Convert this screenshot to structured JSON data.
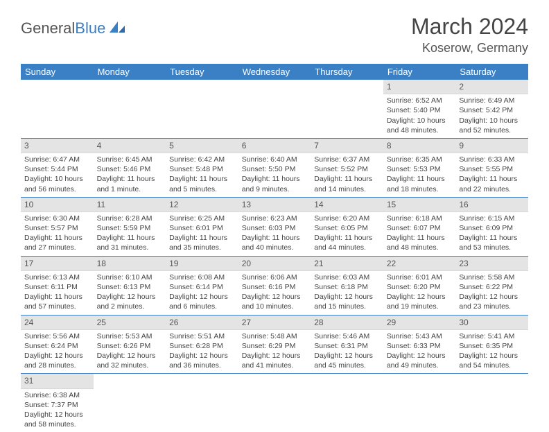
{
  "logo": {
    "general": "General",
    "blue": "Blue"
  },
  "title": "March 2024",
  "location": "Koserow, Germany",
  "colors": {
    "header_bg": "#3b7fc4",
    "daynum_bg": "#e4e4e4",
    "border": "#3b7fc4"
  },
  "weekdays": [
    "Sunday",
    "Monday",
    "Tuesday",
    "Wednesday",
    "Thursday",
    "Friday",
    "Saturday"
  ],
  "weeks": [
    [
      null,
      null,
      null,
      null,
      null,
      {
        "n": "1",
        "sr": "6:52 AM",
        "ss": "5:40 PM",
        "dl": "10 hours and 48 minutes."
      },
      {
        "n": "2",
        "sr": "6:49 AM",
        "ss": "5:42 PM",
        "dl": "10 hours and 52 minutes."
      }
    ],
    [
      {
        "n": "3",
        "sr": "6:47 AM",
        "ss": "5:44 PM",
        "dl": "10 hours and 56 minutes."
      },
      {
        "n": "4",
        "sr": "6:45 AM",
        "ss": "5:46 PM",
        "dl": "11 hours and 1 minute."
      },
      {
        "n": "5",
        "sr": "6:42 AM",
        "ss": "5:48 PM",
        "dl": "11 hours and 5 minutes."
      },
      {
        "n": "6",
        "sr": "6:40 AM",
        "ss": "5:50 PM",
        "dl": "11 hours and 9 minutes."
      },
      {
        "n": "7",
        "sr": "6:37 AM",
        "ss": "5:52 PM",
        "dl": "11 hours and 14 minutes."
      },
      {
        "n": "8",
        "sr": "6:35 AM",
        "ss": "5:53 PM",
        "dl": "11 hours and 18 minutes."
      },
      {
        "n": "9",
        "sr": "6:33 AM",
        "ss": "5:55 PM",
        "dl": "11 hours and 22 minutes."
      }
    ],
    [
      {
        "n": "10",
        "sr": "6:30 AM",
        "ss": "5:57 PM",
        "dl": "11 hours and 27 minutes."
      },
      {
        "n": "11",
        "sr": "6:28 AM",
        "ss": "5:59 PM",
        "dl": "11 hours and 31 minutes."
      },
      {
        "n": "12",
        "sr": "6:25 AM",
        "ss": "6:01 PM",
        "dl": "11 hours and 35 minutes."
      },
      {
        "n": "13",
        "sr": "6:23 AM",
        "ss": "6:03 PM",
        "dl": "11 hours and 40 minutes."
      },
      {
        "n": "14",
        "sr": "6:20 AM",
        "ss": "6:05 PM",
        "dl": "11 hours and 44 minutes."
      },
      {
        "n": "15",
        "sr": "6:18 AM",
        "ss": "6:07 PM",
        "dl": "11 hours and 48 minutes."
      },
      {
        "n": "16",
        "sr": "6:15 AM",
        "ss": "6:09 PM",
        "dl": "11 hours and 53 minutes."
      }
    ],
    [
      {
        "n": "17",
        "sr": "6:13 AM",
        "ss": "6:11 PM",
        "dl": "11 hours and 57 minutes."
      },
      {
        "n": "18",
        "sr": "6:10 AM",
        "ss": "6:13 PM",
        "dl": "12 hours and 2 minutes."
      },
      {
        "n": "19",
        "sr": "6:08 AM",
        "ss": "6:14 PM",
        "dl": "12 hours and 6 minutes."
      },
      {
        "n": "20",
        "sr": "6:06 AM",
        "ss": "6:16 PM",
        "dl": "12 hours and 10 minutes."
      },
      {
        "n": "21",
        "sr": "6:03 AM",
        "ss": "6:18 PM",
        "dl": "12 hours and 15 minutes."
      },
      {
        "n": "22",
        "sr": "6:01 AM",
        "ss": "6:20 PM",
        "dl": "12 hours and 19 minutes."
      },
      {
        "n": "23",
        "sr": "5:58 AM",
        "ss": "6:22 PM",
        "dl": "12 hours and 23 minutes."
      }
    ],
    [
      {
        "n": "24",
        "sr": "5:56 AM",
        "ss": "6:24 PM",
        "dl": "12 hours and 28 minutes."
      },
      {
        "n": "25",
        "sr": "5:53 AM",
        "ss": "6:26 PM",
        "dl": "12 hours and 32 minutes."
      },
      {
        "n": "26",
        "sr": "5:51 AM",
        "ss": "6:28 PM",
        "dl": "12 hours and 36 minutes."
      },
      {
        "n": "27",
        "sr": "5:48 AM",
        "ss": "6:29 PM",
        "dl": "12 hours and 41 minutes."
      },
      {
        "n": "28",
        "sr": "5:46 AM",
        "ss": "6:31 PM",
        "dl": "12 hours and 45 minutes."
      },
      {
        "n": "29",
        "sr": "5:43 AM",
        "ss": "6:33 PM",
        "dl": "12 hours and 49 minutes."
      },
      {
        "n": "30",
        "sr": "5:41 AM",
        "ss": "6:35 PM",
        "dl": "12 hours and 54 minutes."
      }
    ],
    [
      {
        "n": "31",
        "sr": "6:38 AM",
        "ss": "7:37 PM",
        "dl": "12 hours and 58 minutes."
      },
      null,
      null,
      null,
      null,
      null,
      null
    ]
  ],
  "labels": {
    "sunrise": "Sunrise:",
    "sunset": "Sunset:",
    "daylight": "Daylight:"
  }
}
